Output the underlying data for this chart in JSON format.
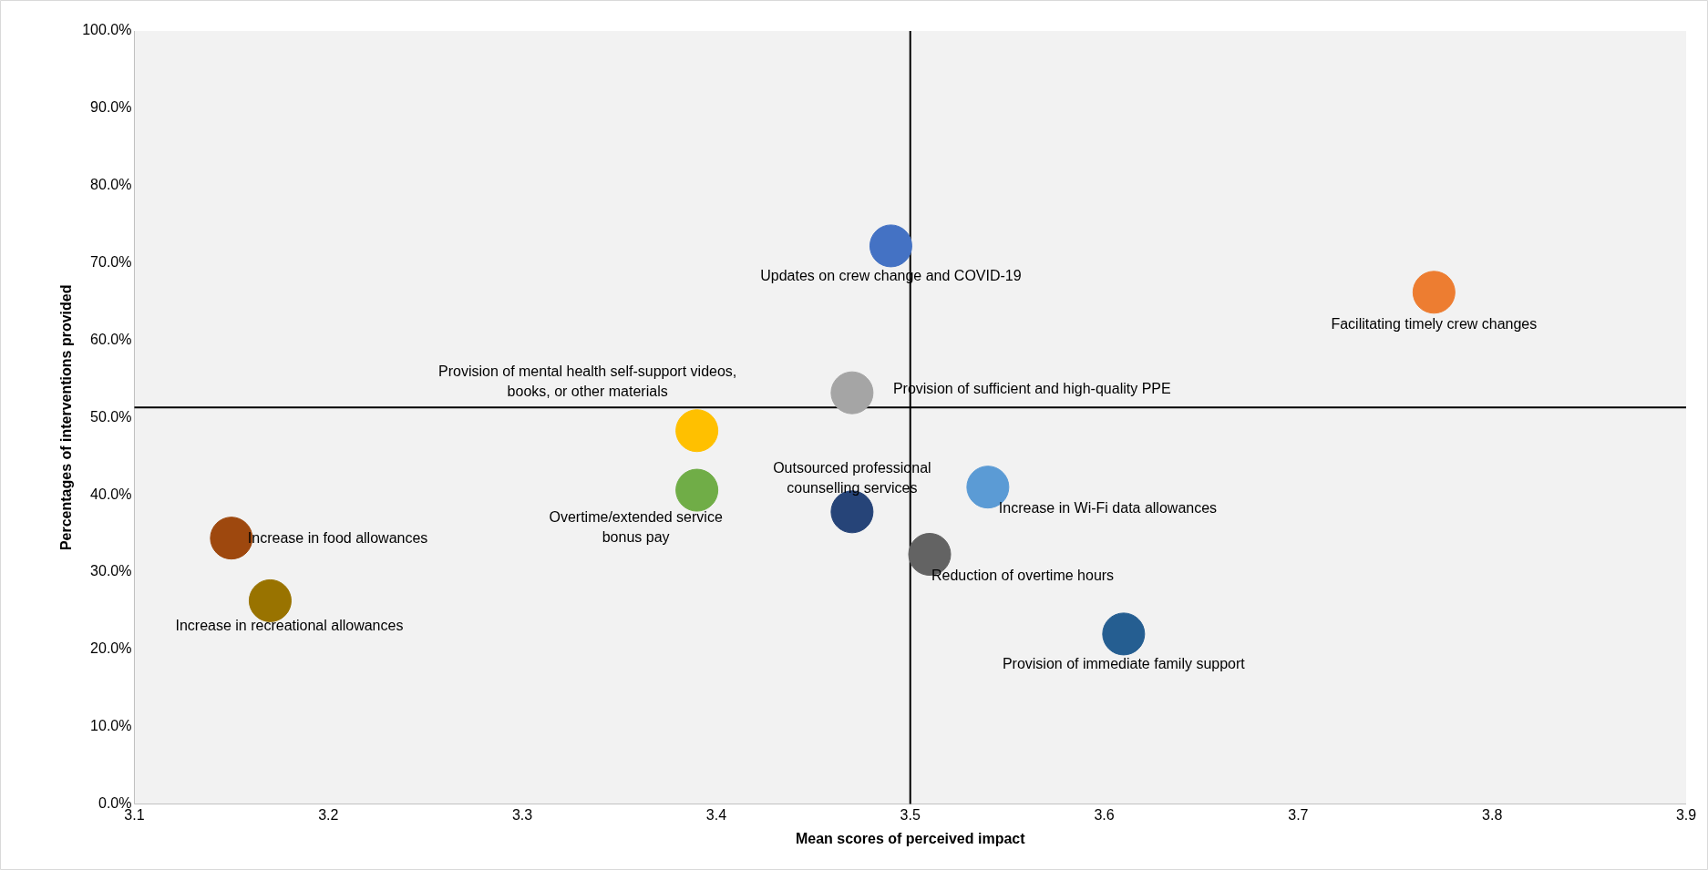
{
  "chart_data": {
    "type": "scatter",
    "xlabel": "Mean scores of perceived impact",
    "ylabel": "Percentages of interventions provided",
    "marker": "circle",
    "grid": false,
    "legend": false,
    "xlim": [
      3.1,
      3.9
    ],
    "xticks": [
      3.1,
      3.2,
      3.3,
      3.4,
      3.5,
      3.6,
      3.7,
      3.8,
      3.9
    ],
    "ylim": [
      0,
      100
    ],
    "yticks": [
      {
        "value": 0,
        "label": "0.0%"
      },
      {
        "value": 10,
        "label": "10.0%"
      },
      {
        "value": 20,
        "label": "20.0%"
      },
      {
        "value": 30,
        "label": "30.0%"
      },
      {
        "value": 40,
        "label": "40.0%"
      },
      {
        "value": 50,
        "label": "50.0%"
      },
      {
        "value": 60,
        "label": "60.0%"
      },
      {
        "value": 70,
        "label": "70.0%"
      },
      {
        "value": 80,
        "label": "80.0%"
      },
      {
        "value": 90,
        "label": "90.0%"
      },
      {
        "value": 100,
        "label": "100.0%"
      }
    ],
    "ref_lines": [
      {
        "axis": "x",
        "value": 3.5,
        "color": "#000000"
      },
      {
        "axis": "y",
        "value": 51.3,
        "color": "#000000"
      }
    ],
    "series": [
      {
        "name": "Updates on crew change and COVID-19",
        "color": "#4472c4",
        "x": [
          3.49
        ],
        "values": [
          72.2
        ]
      },
      {
        "name": "Facilitating timely crew changes",
        "color": "#ed7d31",
        "x": [
          3.77
        ],
        "values": [
          66.2
        ]
      },
      {
        "name": "Provision of sufficient and high-quality PPE",
        "color": "#a5a5a5",
        "x": [
          3.47
        ],
        "values": [
          53.2
        ]
      },
      {
        "name": "Provision of mental health self-support videos, books, or other materials",
        "color": "#ffc000",
        "x": [
          3.39
        ],
        "values": [
          48.3
        ]
      },
      {
        "name": "Overtime/extended service bonus pay",
        "color": "#70ad47",
        "x": [
          3.39
        ],
        "values": [
          40.6
        ]
      },
      {
        "name": "Outsourced professional counselling services",
        "color": "#264478",
        "x": [
          3.47
        ],
        "values": [
          37.8
        ]
      },
      {
        "name": "Increase in Wi-Fi data allowances",
        "color": "#5b9bd5",
        "x": [
          3.54
        ],
        "values": [
          41.0
        ]
      },
      {
        "name": "Reduction of overtime hours",
        "color": "#636363",
        "x": [
          3.51
        ],
        "values": [
          32.3
        ]
      },
      {
        "name": "Provision of immediate family support",
        "color": "#255e91",
        "x": [
          3.61
        ],
        "values": [
          22.0
        ]
      },
      {
        "name": "Increase in food allowances",
        "color": "#9e480e",
        "x": [
          3.15
        ],
        "values": [
          34.4
        ]
      },
      {
        "name": "Increase in recreational allowances",
        "color": "#997300",
        "x": [
          3.17
        ],
        "values": [
          26.3
        ]
      }
    ]
  }
}
